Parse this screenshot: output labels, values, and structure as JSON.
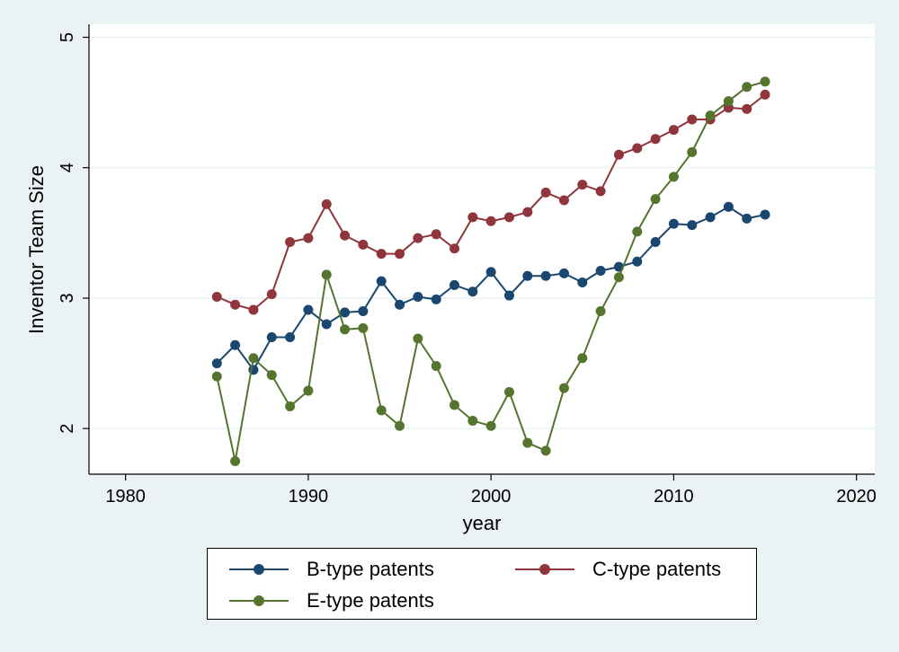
{
  "chart_data": {
    "type": "line",
    "title": "",
    "xlabel": "year",
    "ylabel": "Inventor Team Size",
    "xlim": [
      1978,
      2021
    ],
    "ylim": [
      1.65,
      5.1
    ],
    "xticks": [
      1980,
      1990,
      2000,
      2010,
      2020
    ],
    "yticks": [
      2,
      3,
      4,
      5
    ],
    "grid": true,
    "legend_position": "bottom",
    "x": [
      1985,
      1986,
      1987,
      1988,
      1989,
      1990,
      1991,
      1992,
      1993,
      1994,
      1995,
      1996,
      1997,
      1998,
      1999,
      2000,
      2001,
      2002,
      2003,
      2004,
      2005,
      2006,
      2007,
      2008,
      2009,
      2010,
      2011,
      2012,
      2013,
      2014,
      2015
    ],
    "series": [
      {
        "name": "B-type patents",
        "color": "#1a476f",
        "values": [
          2.5,
          2.64,
          2.45,
          2.7,
          2.7,
          2.91,
          2.8,
          2.89,
          2.9,
          3.13,
          2.95,
          3.01,
          2.99,
          3.1,
          3.05,
          3.2,
          3.02,
          3.17,
          3.17,
          3.19,
          3.12,
          3.21,
          3.24,
          3.28,
          3.43,
          3.57,
          3.56,
          3.62,
          3.7,
          3.61,
          3.64
        ]
      },
      {
        "name": "C-type patents",
        "color": "#90353b",
        "values": [
          3.01,
          2.95,
          2.91,
          3.03,
          3.43,
          3.46,
          3.72,
          3.48,
          3.41,
          3.34,
          3.34,
          3.46,
          3.49,
          3.38,
          3.62,
          3.59,
          3.62,
          3.66,
          3.81,
          3.75,
          3.87,
          3.82,
          4.1,
          4.15,
          4.22,
          4.29,
          4.37,
          4.37,
          4.46,
          4.45,
          4.56
        ]
      },
      {
        "name": "E-type patents",
        "color": "#55752f",
        "values": [
          2.4,
          1.75,
          2.54,
          2.41,
          2.17,
          2.29,
          3.18,
          2.76,
          2.77,
          2.14,
          2.02,
          2.69,
          2.48,
          2.18,
          2.06,
          2.02,
          2.28,
          1.89,
          1.83,
          2.31,
          2.54,
          2.9,
          3.16,
          3.51,
          3.76,
          3.93,
          4.12,
          4.4,
          4.51,
          4.62,
          4.66
        ]
      }
    ]
  }
}
